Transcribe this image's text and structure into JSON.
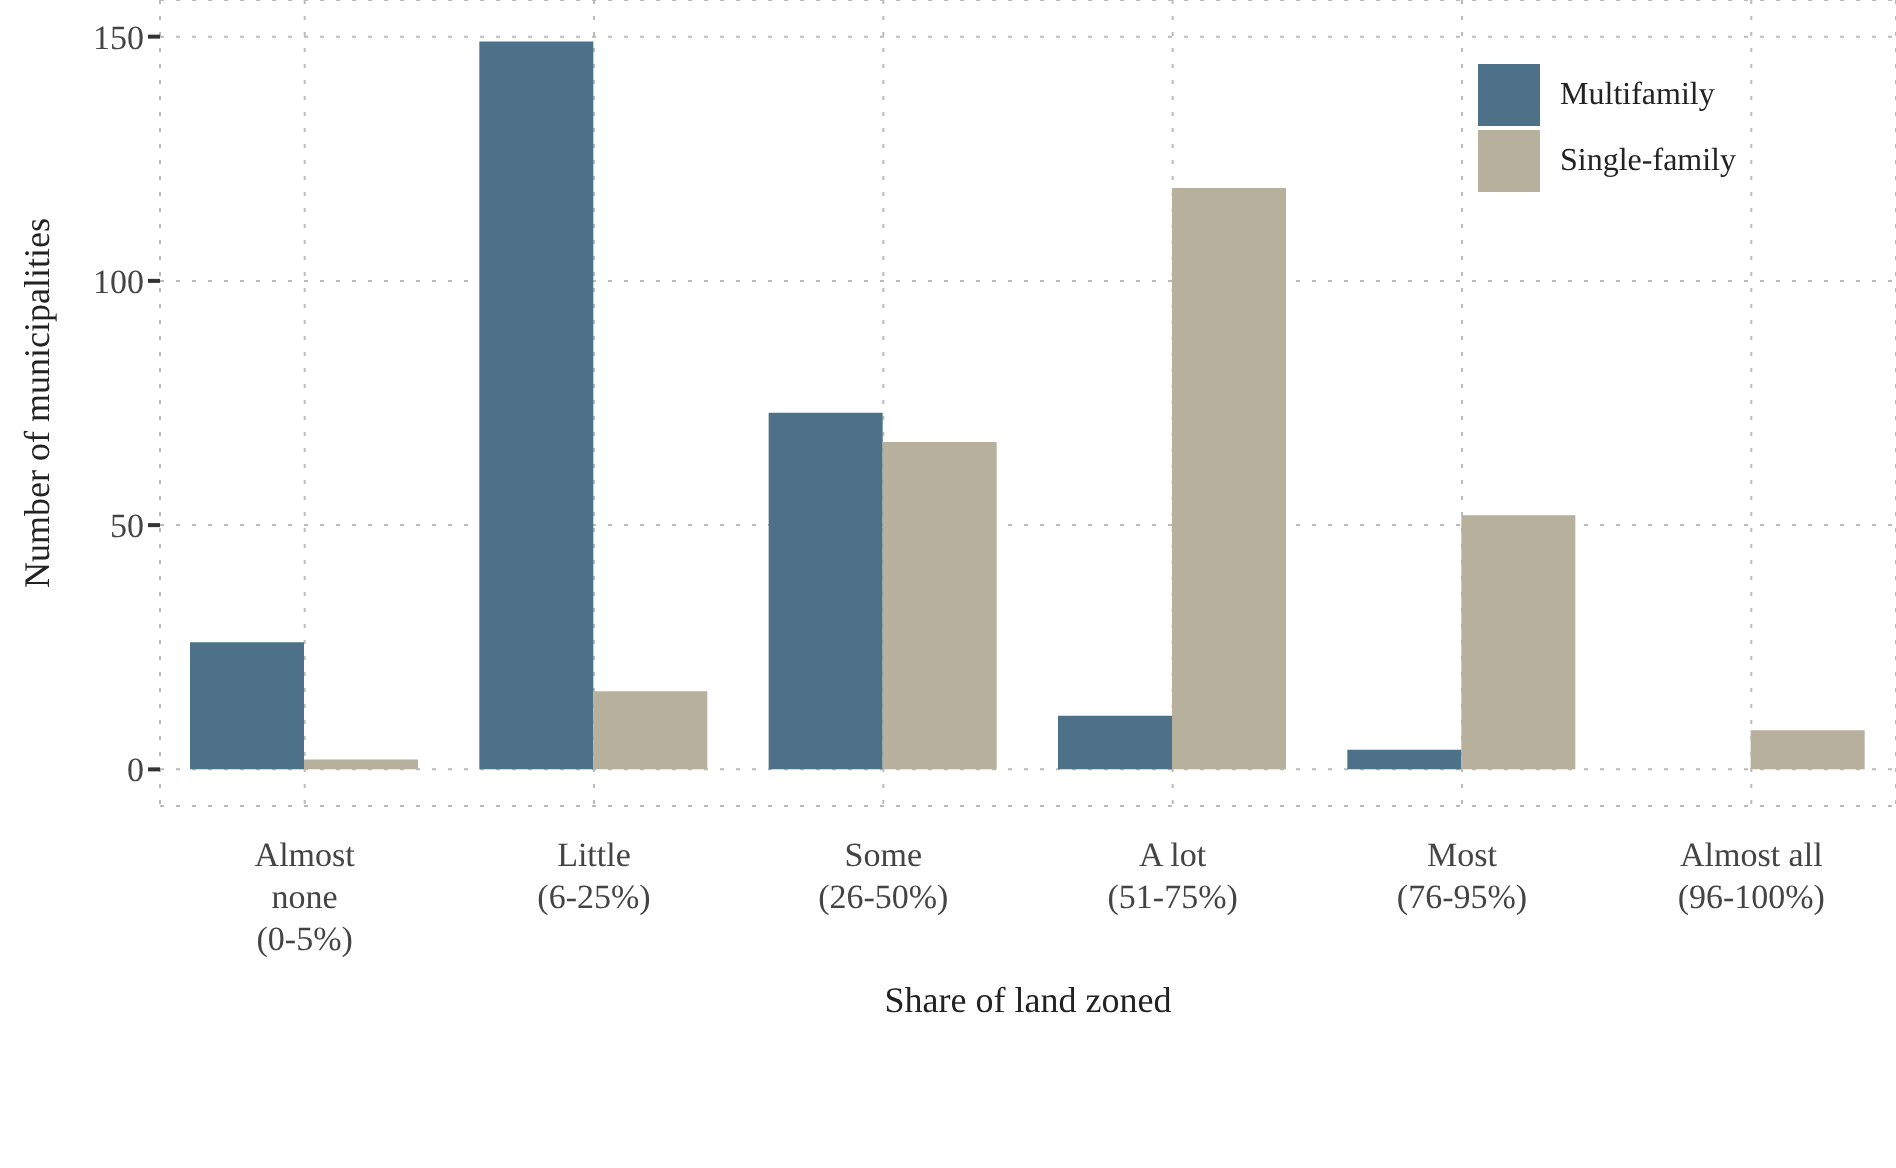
{
  "chart_data": {
    "type": "bar",
    "xlabel": "Share of land zoned",
    "ylabel": "Number of municipalities",
    "categories": [
      "Almost\nnone\n(0-5%)",
      "Little\n(6-25%)",
      "Some\n(26-50%)",
      "A lot\n(51-75%)",
      "Most\n(76-95%)",
      "Almost all\n(96-100%)"
    ],
    "series": [
      {
        "name": "Multifamily",
        "color": "#4d7189",
        "values": [
          26,
          149,
          73,
          11,
          4,
          0
        ]
      },
      {
        "name": "Single-family",
        "color": "#b7b09c",
        "values": [
          2,
          16,
          67,
          119,
          52,
          8
        ]
      }
    ],
    "ylim": [
      -7.5,
      157.5
    ],
    "yticks": [
      0,
      50,
      100,
      150
    ],
    "grid": true,
    "legend": "top right"
  }
}
